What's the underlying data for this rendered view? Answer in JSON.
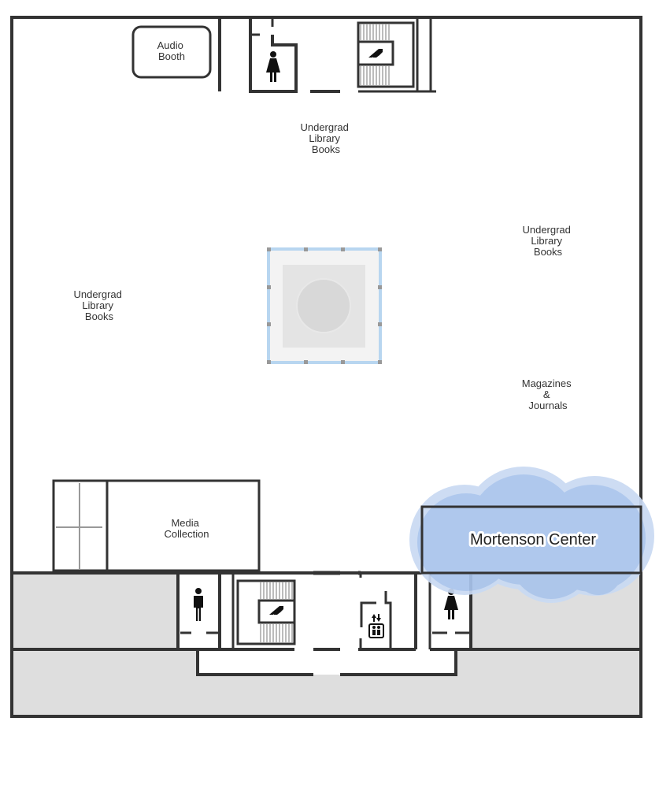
{
  "map": {
    "rooms": {
      "audio_booth": {
        "lines": [
          "Audio",
          "Booth"
        ]
      },
      "undergrad_books_top": {
        "lines": [
          "Undergrad",
          "Library",
          "Books"
        ]
      },
      "undergrad_books_left": {
        "lines": [
          "Undergrad",
          "Library",
          "Books"
        ]
      },
      "undergrad_books_right": {
        "lines": [
          "Undergrad",
          "Library",
          "Books"
        ]
      },
      "magazines_journals": {
        "lines": [
          "Magazines",
          "&",
          "Journals"
        ]
      },
      "media_collection": {
        "lines": [
          "Media",
          "Collection"
        ]
      }
    },
    "highlight": {
      "label": "Mortenson Center"
    },
    "icons": [
      "womens-restroom-icon",
      "mens-restroom-icon",
      "stairs-icon",
      "elevator-icon"
    ],
    "colors": {
      "wall": "#333333",
      "floor": "#ffffff",
      "service_area": "#dedede",
      "highlight_cloud": "#a9c4ec",
      "highlight_cloud_halo": "#c9daf3",
      "atrium_glass": "#b8d6f0"
    }
  }
}
